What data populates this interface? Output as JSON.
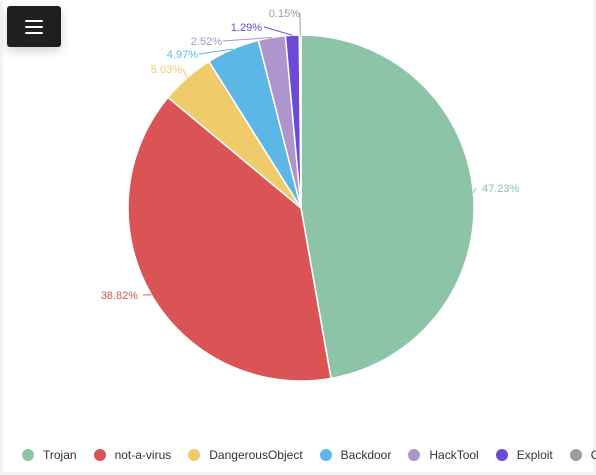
{
  "chart_data": {
    "type": "pie",
    "categories": [
      "Trojan",
      "not-a-virus",
      "DangerousObject",
      "Backdoor",
      "HackTool",
      "Exploit",
      "Other"
    ],
    "values": [
      47.23,
      38.82,
      5.03,
      4.97,
      2.52,
      1.29,
      0.15
    ],
    "labels": [
      "47.23%",
      "38.82%",
      "5.03%",
      "4.97%",
      "2.52%",
      "1.29%",
      "0.15%"
    ],
    "colors": [
      "#8dc4a8",
      "#db5455",
      "#efcb6c",
      "#5db7e6",
      "#ae95cc",
      "#6c49d6",
      "#9c9c9c"
    ],
    "title": "",
    "legend_position": "bottom"
  },
  "menu": {
    "icon": "hamburger-icon"
  }
}
